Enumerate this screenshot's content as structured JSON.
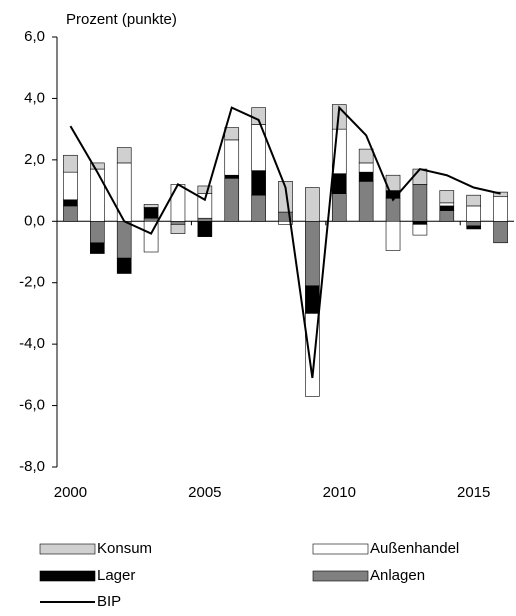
{
  "chart_data": {
    "type": "stacked-bar-line",
    "y_axis_label": "Prozent (punkte)",
    "categories": [
      "2000",
      null,
      null,
      null,
      null,
      "2005",
      null,
      null,
      null,
      null,
      "2010",
      null,
      null,
      null,
      null,
      "2015",
      null
    ],
    "ylim": [
      -8,
      6
    ],
    "yticks": [
      {
        "value": 6,
        "label": "6,0"
      },
      {
        "value": 4,
        "label": "4,0"
      },
      {
        "value": 2,
        "label": "2,0"
      },
      {
        "value": 0,
        "label": "0,0"
      },
      {
        "value": -2,
        "label": "-2,0"
      },
      {
        "value": -4,
        "label": "-4,0"
      },
      {
        "value": -6,
        "label": "-6,0"
      },
      {
        "value": -8,
        "label": "-8,0"
      }
    ],
    "series": [
      {
        "name": "Konsum",
        "type": "bar",
        "color": "#d0d0d0",
        "values": [
          0.55,
          0.2,
          0.5,
          0.1,
          -0.3,
          0.25,
          0.4,
          0.55,
          1.0,
          1.1,
          0.8,
          0.45,
          0.5,
          0.5,
          0.4,
          0.35,
          0.15
        ]
      },
      {
        "name": "Außenhandel",
        "type": "bar",
        "color": "#ffffff",
        "values": [
          0.9,
          1.7,
          1.9,
          -1.0,
          1.2,
          0.8,
          1.15,
          1.5,
          -0.1,
          -2.7,
          1.45,
          0.3,
          -0.95,
          -0.35,
          0.1,
          0.5,
          0.8
        ]
      },
      {
        "name": "Lager",
        "type": "bar",
        "color": "#000000",
        "values": [
          0.2,
          -0.35,
          -0.5,
          0.35,
          0,
          -0.5,
          0.1,
          0.8,
          0,
          -0.9,
          0.65,
          0.3,
          0.25,
          -0.1,
          0.15,
          -0.1,
          0
        ]
      },
      {
        "name": "Anlagen",
        "type": "bar",
        "color": "#808080",
        "values": [
          0.5,
          -0.7,
          -1.2,
          0.1,
          -0.1,
          0.1,
          1.4,
          0.85,
          0.3,
          -2.1,
          0.9,
          1.3,
          0.75,
          1.2,
          0.35,
          -0.15,
          -0.7
        ]
      },
      {
        "name": "BIP",
        "type": "line",
        "color": "#000000",
        "values": [
          3.1,
          1.6,
          0.0,
          -0.4,
          1.2,
          0.7,
          3.7,
          3.3,
          1.1,
          -5.1,
          3.7,
          2.8,
          0.7,
          1.7,
          1.5,
          1.1,
          0.9
        ]
      }
    ]
  }
}
